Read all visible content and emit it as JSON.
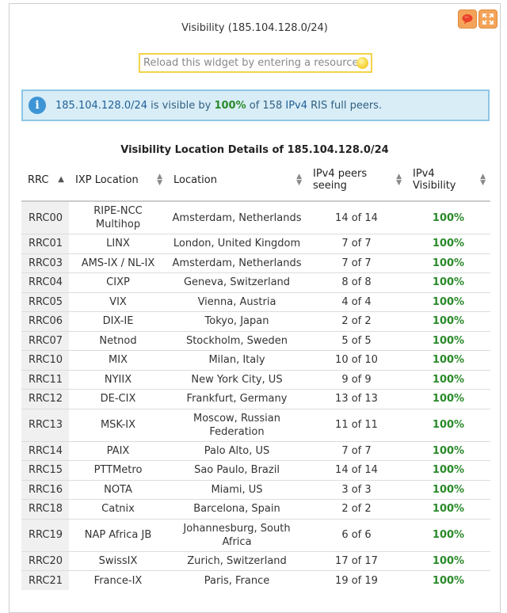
{
  "widget": {
    "title": "Visibility (185.104.128.0/24)",
    "feedback_icon": "speech-bubble-icon",
    "expand_icon": "expand-icon",
    "accent_color": "#f4a45a"
  },
  "resource_input": {
    "placeholder": "Reload this widget by entering a resource here"
  },
  "info": {
    "prefix": "185.104.128.0/24",
    "text1": " is visible by ",
    "percent": "100%",
    "text2": " of 158 ",
    "ipv": "IPv4",
    "text3": " RIS full peers."
  },
  "table": {
    "title": "Visibility Location Details of 185.104.128.0/24",
    "headers": {
      "rrc": "RRC",
      "ixp": "IXP Location",
      "location": "Location",
      "peers": "IPv4 peers seeing",
      "visibility": "IPv4 Visibility"
    },
    "rows": [
      {
        "rrc": "RRC00",
        "ixp": "RIPE-NCC Multihop",
        "location": "Amsterdam, Netherlands",
        "peers": "14 of 14",
        "vis": "100%"
      },
      {
        "rrc": "RRC01",
        "ixp": "LINX",
        "location": "London, United Kingdom",
        "peers": "7 of 7",
        "vis": "100%"
      },
      {
        "rrc": "RRC03",
        "ixp": "AMS-IX / NL-IX",
        "location": "Amsterdam, Netherlands",
        "peers": "7 of 7",
        "vis": "100%"
      },
      {
        "rrc": "RRC04",
        "ixp": "CIXP",
        "location": "Geneva, Switzerland",
        "peers": "8 of 8",
        "vis": "100%"
      },
      {
        "rrc": "RRC05",
        "ixp": "VIX",
        "location": "Vienna, Austria",
        "peers": "4 of 4",
        "vis": "100%"
      },
      {
        "rrc": "RRC06",
        "ixp": "DIX-IE",
        "location": "Tokyo, Japan",
        "peers": "2 of 2",
        "vis": "100%"
      },
      {
        "rrc": "RRC07",
        "ixp": "Netnod",
        "location": "Stockholm, Sweden",
        "peers": "5 of 5",
        "vis": "100%"
      },
      {
        "rrc": "RRC10",
        "ixp": "MIX",
        "location": "Milan, Italy",
        "peers": "10 of 10",
        "vis": "100%"
      },
      {
        "rrc": "RRC11",
        "ixp": "NYIIX",
        "location": "New York City, US",
        "peers": "9 of 9",
        "vis": "100%"
      },
      {
        "rrc": "RRC12",
        "ixp": "DE-CIX",
        "location": "Frankfurt, Germany",
        "peers": "13 of 13",
        "vis": "100%"
      },
      {
        "rrc": "RRC13",
        "ixp": "MSK-IX",
        "location": "Moscow, Russian Federation",
        "peers": "11 of 11",
        "vis": "100%"
      },
      {
        "rrc": "RRC14",
        "ixp": "PAIX",
        "location": "Palo Alto, US",
        "peers": "7 of 7",
        "vis": "100%"
      },
      {
        "rrc": "RRC15",
        "ixp": "PTTMetro",
        "location": "Sao Paulo, Brazil",
        "peers": "14 of 14",
        "vis": "100%"
      },
      {
        "rrc": "RRC16",
        "ixp": "NOTA",
        "location": "Miami, US",
        "peers": "3 of 3",
        "vis": "100%"
      },
      {
        "rrc": "RRC18",
        "ixp": "Catnix",
        "location": "Barcelona, Spain",
        "peers": "2 of 2",
        "vis": "100%"
      },
      {
        "rrc": "RRC19",
        "ixp": "NAP Africa JB",
        "location": "Johannesburg, South Africa",
        "peers": "6 of 6",
        "vis": "100%"
      },
      {
        "rrc": "RRC20",
        "ixp": "SwissIX",
        "location": "Zurich, Switzerland",
        "peers": "17 of 17",
        "vis": "100%"
      },
      {
        "rrc": "RRC21",
        "ixp": "France-IX",
        "location": "Paris, France",
        "peers": "19 of 19",
        "vis": "100%"
      }
    ]
  }
}
